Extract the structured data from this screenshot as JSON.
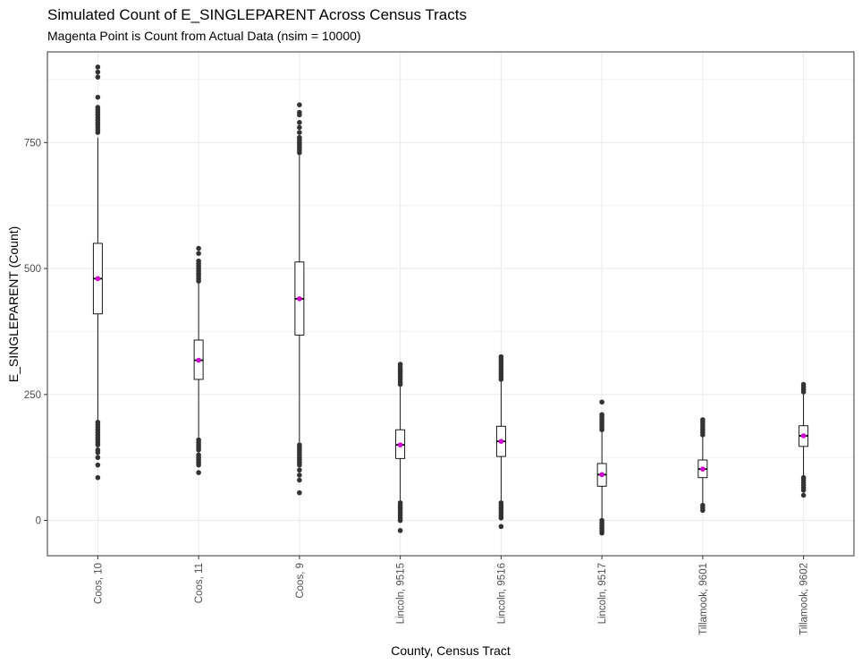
{
  "chart_data": {
    "type": "boxplot",
    "title": "Simulated Count of E_SINGLEPARENT Across Census Tracts",
    "subtitle": "Magenta Point is Count from Actual Data (nsim = 10000)",
    "xlabel": "County, Census Tract",
    "ylabel": "E_SINGLEPARENT (Count)",
    "ylim": [
      -70,
      930
    ],
    "yticks": [
      0,
      250,
      500,
      750
    ],
    "grid": true,
    "colors": {
      "box": "#000000",
      "outlier": "#333333",
      "actual_point": "#cc00cc",
      "grid": "#ebebeb",
      "border": "#333333"
    },
    "categories": [
      "Coos, 10",
      "Coos, 11",
      "Coos, 9",
      "Lincoln, 9515",
      "Lincoln, 9516",
      "Lincoln, 9517",
      "Tillamook, 9601",
      "Tillamook, 9602"
    ],
    "boxes": [
      {
        "q1": 410,
        "median": 480,
        "q3": 550,
        "whisker_low": 200,
        "whisker_high": 760,
        "actual": 480,
        "outliers": [
          85,
          110,
          125,
          135,
          140,
          150,
          155,
          160,
          165,
          170,
          175,
          180,
          185,
          190,
          195,
          770,
          775,
          780,
          785,
          790,
          795,
          800,
          805,
          810,
          815,
          820,
          840,
          880,
          890,
          900
        ]
      },
      {
        "q1": 280,
        "median": 318,
        "q3": 358,
        "whisker_low": 165,
        "whisker_high": 470,
        "actual": 318,
        "outliers": [
          95,
          110,
          115,
          120,
          125,
          130,
          140,
          145,
          150,
          155,
          160,
          475,
          480,
          485,
          490,
          495,
          500,
          505,
          510,
          515,
          530,
          540
        ]
      },
      {
        "q1": 368,
        "median": 440,
        "q3": 513,
        "whisker_low": 155,
        "whisker_high": 725,
        "actual": 440,
        "outliers": [
          55,
          80,
          90,
          100,
          110,
          115,
          120,
          125,
          130,
          135,
          140,
          145,
          150,
          730,
          735,
          740,
          745,
          750,
          755,
          760,
          770,
          780,
          790,
          805,
          810,
          825
        ]
      },
      {
        "q1": 123,
        "median": 150,
        "q3": 180,
        "whisker_low": 38,
        "whisker_high": 268,
        "actual": 150,
        "outliers": [
          -20,
          0,
          5,
          10,
          15,
          20,
          25,
          30,
          35,
          270,
          275,
          280,
          285,
          290,
          295,
          300,
          305,
          310
        ]
      },
      {
        "q1": 127,
        "median": 157,
        "q3": 187,
        "whisker_low": 38,
        "whisker_high": 278,
        "actual": 157,
        "outliers": [
          -12,
          5,
          10,
          15,
          20,
          25,
          30,
          35,
          280,
          285,
          290,
          295,
          300,
          305,
          310,
          315,
          320,
          325
        ]
      },
      {
        "q1": 68,
        "median": 91,
        "q3": 113,
        "whisker_low": 3,
        "whisker_high": 178,
        "actual": 91,
        "outliers": [
          -25,
          -20,
          -15,
          -10,
          -5,
          0,
          180,
          185,
          190,
          195,
          200,
          205,
          210,
          235
        ]
      },
      {
        "q1": 85,
        "median": 102,
        "q3": 120,
        "whisker_low": 33,
        "whisker_high": 168,
        "actual": 102,
        "outliers": [
          20,
          25,
          30,
          170,
          175,
          180,
          185,
          190,
          195,
          200
        ]
      },
      {
        "q1": 147,
        "median": 168,
        "q3": 188,
        "whisker_low": 88,
        "whisker_high": 250,
        "actual": 168,
        "outliers": [
          50,
          60,
          65,
          70,
          75,
          80,
          85,
          255,
          260,
          265,
          270
        ]
      }
    ]
  }
}
